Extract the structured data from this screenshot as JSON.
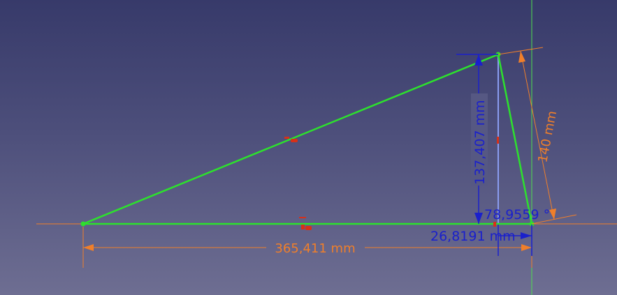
{
  "sketch": {
    "dimensions": {
      "horizontal_length": "365,411 mm",
      "vertical_height": "137,407 mm",
      "slant_length": "140 mm",
      "angle": "78,9559 °",
      "offset_length": "26,8191 mm"
    },
    "colors": {
      "geometry": "#2de12d",
      "orange_dimension": "#f07f2a",
      "blue_dimension": "#1a20cc",
      "construction": "#8a9cf0",
      "y_axis": "#4fe04f",
      "x_axis": "#f07f2a",
      "constraint_marker": "#d83018"
    }
  }
}
